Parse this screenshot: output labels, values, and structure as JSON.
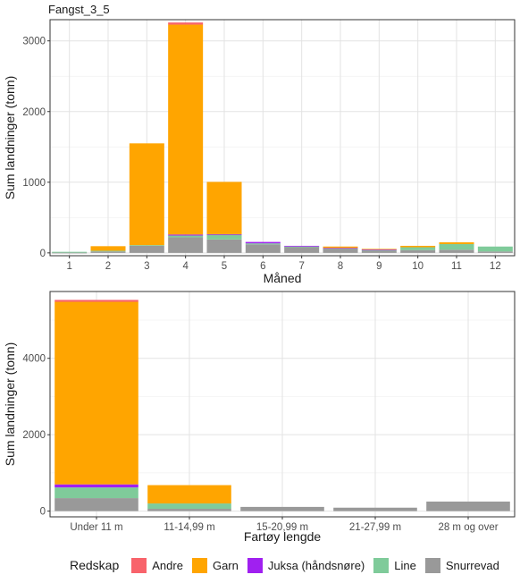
{
  "figure_title": "Fangst_3_5",
  "legend": {
    "title": "Redskap",
    "items": [
      {
        "name": "Andre",
        "color": "#F8636B"
      },
      {
        "name": "Garn",
        "color": "#FFA500"
      },
      {
        "name": "Juksa (håndsnøre)",
        "color": "#A020F0"
      },
      {
        "name": "Line",
        "color": "#7FCB9A"
      },
      {
        "name": "Snurrevad",
        "color": "#999999"
      }
    ]
  },
  "chart_data": [
    {
      "type": "bar",
      "stacked": true,
      "xlabel": "Måned",
      "ylabel": "Sum landninger (tonn)",
      "ylim": [
        -40,
        3300
      ],
      "yticks": [
        0,
        1000,
        2000,
        3000
      ],
      "grid": true,
      "categories": [
        "1",
        "2",
        "3",
        "4",
        "5",
        "6",
        "7",
        "8",
        "9",
        "10",
        "11",
        "12"
      ],
      "series": [
        {
          "name": "Snurrevad",
          "values": [
            3,
            20,
            100,
            220,
            190,
            120,
            85,
            55,
            30,
            40,
            45,
            20
          ]
        },
        {
          "name": "Line",
          "values": [
            12,
            10,
            10,
            25,
            70,
            15,
            5,
            10,
            12,
            40,
            80,
            70
          ]
        },
        {
          "name": "Juksa (håndsnøre)",
          "values": [
            0,
            0,
            0,
            15,
            5,
            20,
            10,
            5,
            5,
            0,
            0,
            0
          ]
        },
        {
          "name": "Garn",
          "values": [
            0,
            65,
            1440,
            2970,
            740,
            0,
            0,
            20,
            10,
            20,
            25,
            0
          ]
        },
        {
          "name": "Andre",
          "values": [
            0,
            0,
            0,
            30,
            0,
            0,
            0,
            0,
            0,
            0,
            0,
            0
          ]
        }
      ]
    },
    {
      "type": "bar",
      "stacked": true,
      "xlabel": "Fartøy lengde",
      "ylabel": "Sum landninger (tonn)",
      "ylim": [
        -150,
        5750
      ],
      "yticks": [
        0,
        2000,
        4000
      ],
      "grid": true,
      "categories": [
        "Under 11 m",
        "11-14,99 m",
        "15-20,99 m",
        "21-27,99 m",
        "28 m og over"
      ],
      "series": [
        {
          "name": "Snurrevad",
          "values": [
            340,
            60,
            110,
            90,
            250
          ]
        },
        {
          "name": "Line",
          "values": [
            280,
            140,
            0,
            0,
            0
          ]
        },
        {
          "name": "Juksa (håndsnøre)",
          "values": [
            80,
            0,
            0,
            0,
            0
          ]
        },
        {
          "name": "Garn",
          "values": [
            4780,
            480,
            0,
            0,
            0
          ]
        },
        {
          "name": "Andre",
          "values": [
            50,
            0,
            0,
            0,
            0
          ]
        }
      ]
    }
  ]
}
